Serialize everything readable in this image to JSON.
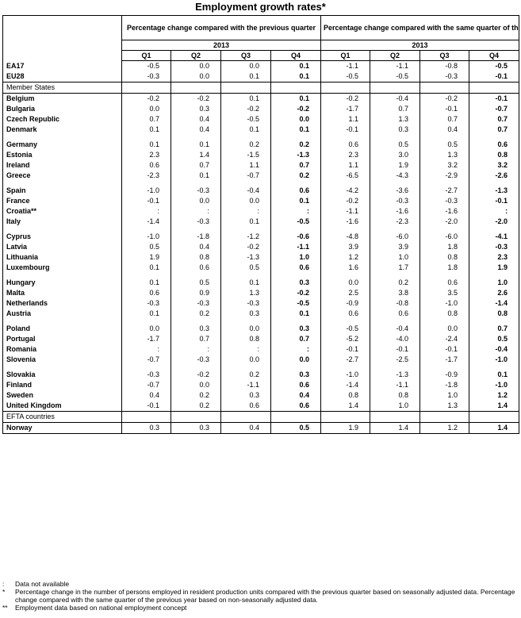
{
  "title": "Employment growth rates*",
  "headers": {
    "group1": "Percentage change compared with the previous quarter",
    "group2": "Percentage change compared with the same quarter of the previous year",
    "year": "2013",
    "quarters": [
      "Q1",
      "Q2",
      "Q3",
      "Q4"
    ]
  },
  "aggregates": [
    {
      "name": "EA17",
      "prev": [
        "-0.5",
        "0.0",
        "0.0",
        "0.1"
      ],
      "yoy": [
        "-1.1",
        "-1.1",
        "-0.8",
        "-0.5"
      ]
    },
    {
      "name": "EU28",
      "prev": [
        "-0.3",
        "0.0",
        "0.1",
        "0.1"
      ],
      "yoy": [
        "-0.5",
        "-0.5",
        "-0.3",
        "-0.1"
      ]
    }
  ],
  "member_states_label": "Member States",
  "member_groups": [
    [
      {
        "name": "Belgium",
        "prev": [
          "-0.2",
          "-0.2",
          "0.1",
          "0.1"
        ],
        "yoy": [
          "-0.2",
          "-0.4",
          "-0.2",
          "-0.1"
        ]
      },
      {
        "name": "Bulgaria",
        "prev": [
          "0.0",
          "0.3",
          "-0.2",
          "-0.2"
        ],
        "yoy": [
          "-1.7",
          "0.7",
          "-0.1",
          "-0.7"
        ]
      },
      {
        "name": "Czech Republic",
        "prev": [
          "0.7",
          "0.4",
          "-0.5",
          "0.0"
        ],
        "yoy": [
          "1.1",
          "1.3",
          "0.7",
          "0.7"
        ]
      },
      {
        "name": "Denmark",
        "prev": [
          "0.1",
          "0.4",
          "0.1",
          "0.1"
        ],
        "yoy": [
          "-0.1",
          "0.3",
          "0.4",
          "0.7"
        ]
      }
    ],
    [
      {
        "name": "Germany",
        "prev": [
          "0.1",
          "0.1",
          "0.2",
          "0.2"
        ],
        "yoy": [
          "0.6",
          "0.5",
          "0.5",
          "0.6"
        ]
      },
      {
        "name": "Estonia",
        "prev": [
          "2.3",
          "1.4",
          "-1.5",
          "-1.3"
        ],
        "yoy": [
          "2.3",
          "3.0",
          "1.3",
          "0.8"
        ]
      },
      {
        "name": "Ireland",
        "prev": [
          "0.6",
          "0.7",
          "1.1",
          "0.7"
        ],
        "yoy": [
          "1.1",
          "1.9",
          "3.2",
          "3.2"
        ]
      },
      {
        "name": "Greece",
        "prev": [
          "-2.3",
          "0.1",
          "-0.7",
          "0.2"
        ],
        "yoy": [
          "-6.5",
          "-4.3",
          "-2.9",
          "-2.6"
        ]
      }
    ],
    [
      {
        "name": "Spain",
        "prev": [
          "-1.0",
          "-0.3",
          "-0.4",
          "0.6"
        ],
        "yoy": [
          "-4.2",
          "-3.6",
          "-2.7",
          "-1.3"
        ]
      },
      {
        "name": "France",
        "prev": [
          "-0.1",
          "0.0",
          "0.0",
          "0.1"
        ],
        "yoy": [
          "-0.2",
          "-0.3",
          "-0.3",
          "-0.1"
        ]
      },
      {
        "name": "Croatia**",
        "prev": [
          ":",
          ":",
          ":",
          ":"
        ],
        "yoy": [
          "-1.1",
          "-1.6",
          "-1.6",
          ":"
        ]
      },
      {
        "name": "Italy",
        "prev": [
          "-1.4",
          "-0.3",
          "0.1",
          "-0.5"
        ],
        "yoy": [
          "-1.6",
          "-2.3",
          "-2.0",
          "-2.0"
        ]
      }
    ],
    [
      {
        "name": "Cyprus",
        "prev": [
          "-1.0",
          "-1.8",
          "-1.2",
          "-0.6"
        ],
        "yoy": [
          "-4.8",
          "-6.0",
          "-6.0",
          "-4.1"
        ]
      },
      {
        "name": "Latvia",
        "prev": [
          "0.5",
          "0.4",
          "-0.2",
          "-1.1"
        ],
        "yoy": [
          "3.9",
          "3.9",
          "1.8",
          "-0.3"
        ]
      },
      {
        "name": "Lithuania",
        "prev": [
          "1.9",
          "0.8",
          "-1.3",
          "1.0"
        ],
        "yoy": [
          "1.2",
          "1.0",
          "0.8",
          "2.3"
        ]
      },
      {
        "name": "Luxembourg",
        "prev": [
          "0.1",
          "0.6",
          "0.5",
          "0.6"
        ],
        "yoy": [
          "1.6",
          "1.7",
          "1.8",
          "1.9"
        ]
      }
    ],
    [
      {
        "name": "Hungary",
        "prev": [
          "0.1",
          "0.5",
          "0.1",
          "0.3"
        ],
        "yoy": [
          "0.0",
          "0.2",
          "0.6",
          "1.0"
        ]
      },
      {
        "name": "Malta",
        "prev": [
          "0.6",
          "0.9",
          "1.3",
          "-0.2"
        ],
        "yoy": [
          "2.5",
          "3.8",
          "3.5",
          "2.6"
        ]
      },
      {
        "name": "Netherlands",
        "prev": [
          "-0.3",
          "-0.3",
          "-0.3",
          "-0.5"
        ],
        "yoy": [
          "-0.9",
          "-0.8",
          "-1.0",
          "-1.4"
        ]
      },
      {
        "name": "Austria",
        "prev": [
          "0.1",
          "0.2",
          "0.3",
          "0.1"
        ],
        "yoy": [
          "0.6",
          "0.6",
          "0.8",
          "0.8"
        ]
      }
    ],
    [
      {
        "name": "Poland",
        "prev": [
          "0.0",
          "0.3",
          "0.0",
          "0.3"
        ],
        "yoy": [
          "-0.5",
          "-0.4",
          "0.0",
          "0.7"
        ]
      },
      {
        "name": "Portugal",
        "prev": [
          "-1.7",
          "0.7",
          "0.8",
          "0.7"
        ],
        "yoy": [
          "-5.2",
          "-4.0",
          "-2.4",
          "0.5"
        ]
      },
      {
        "name": "Romania",
        "prev": [
          ":",
          ":",
          ":",
          ":"
        ],
        "yoy": [
          "-0.1",
          "-0.1",
          "-0.1",
          "-0.4"
        ]
      },
      {
        "name": "Slovenia",
        "prev": [
          "-0.7",
          "-0.3",
          "0.0",
          "0.0"
        ],
        "yoy": [
          "-2.7",
          "-2.5",
          "-1.7",
          "-1.0"
        ]
      }
    ],
    [
      {
        "name": "Slovakia",
        "prev": [
          "-0.3",
          "-0.2",
          "0.2",
          "0.3"
        ],
        "yoy": [
          "-1.0",
          "-1.3",
          "-0.9",
          "0.1"
        ]
      },
      {
        "name": "Finland",
        "prev": [
          "-0.7",
          "0.0",
          "-1.1",
          "0.6"
        ],
        "yoy": [
          "-1.4",
          "-1.1",
          "-1.8",
          "-1.0"
        ]
      },
      {
        "name": "Sweden",
        "prev": [
          "0.4",
          "0.2",
          "0.3",
          "0.4"
        ],
        "yoy": [
          "0.8",
          "0.8",
          "1.0",
          "1.2"
        ]
      },
      {
        "name": "United Kingdom",
        "prev": [
          "-0.1",
          "0.2",
          "0.6",
          "0.6"
        ],
        "yoy": [
          "1.4",
          "1.0",
          "1.3",
          "1.4"
        ]
      }
    ]
  ],
  "efta_label": "EFTA countries",
  "efta": [
    {
      "name": "Norway",
      "prev": [
        "0.3",
        "0.3",
        "0.4",
        "0.5"
      ],
      "yoy": [
        "1.9",
        "1.4",
        "1.2",
        "1.4"
      ]
    }
  ],
  "notes": [
    {
      "symbol": ":",
      "text": "Data not available"
    },
    {
      "symbol": "*",
      "text": "Percentage change in the number of persons employed in resident production units compared with the previous quarter based on seasonally adjusted data. Percentage change compared with the same quarter of the previous year based on non-seasonally adjusted data."
    },
    {
      "symbol": "**",
      "text": "Employment data based on national employment concept"
    }
  ]
}
